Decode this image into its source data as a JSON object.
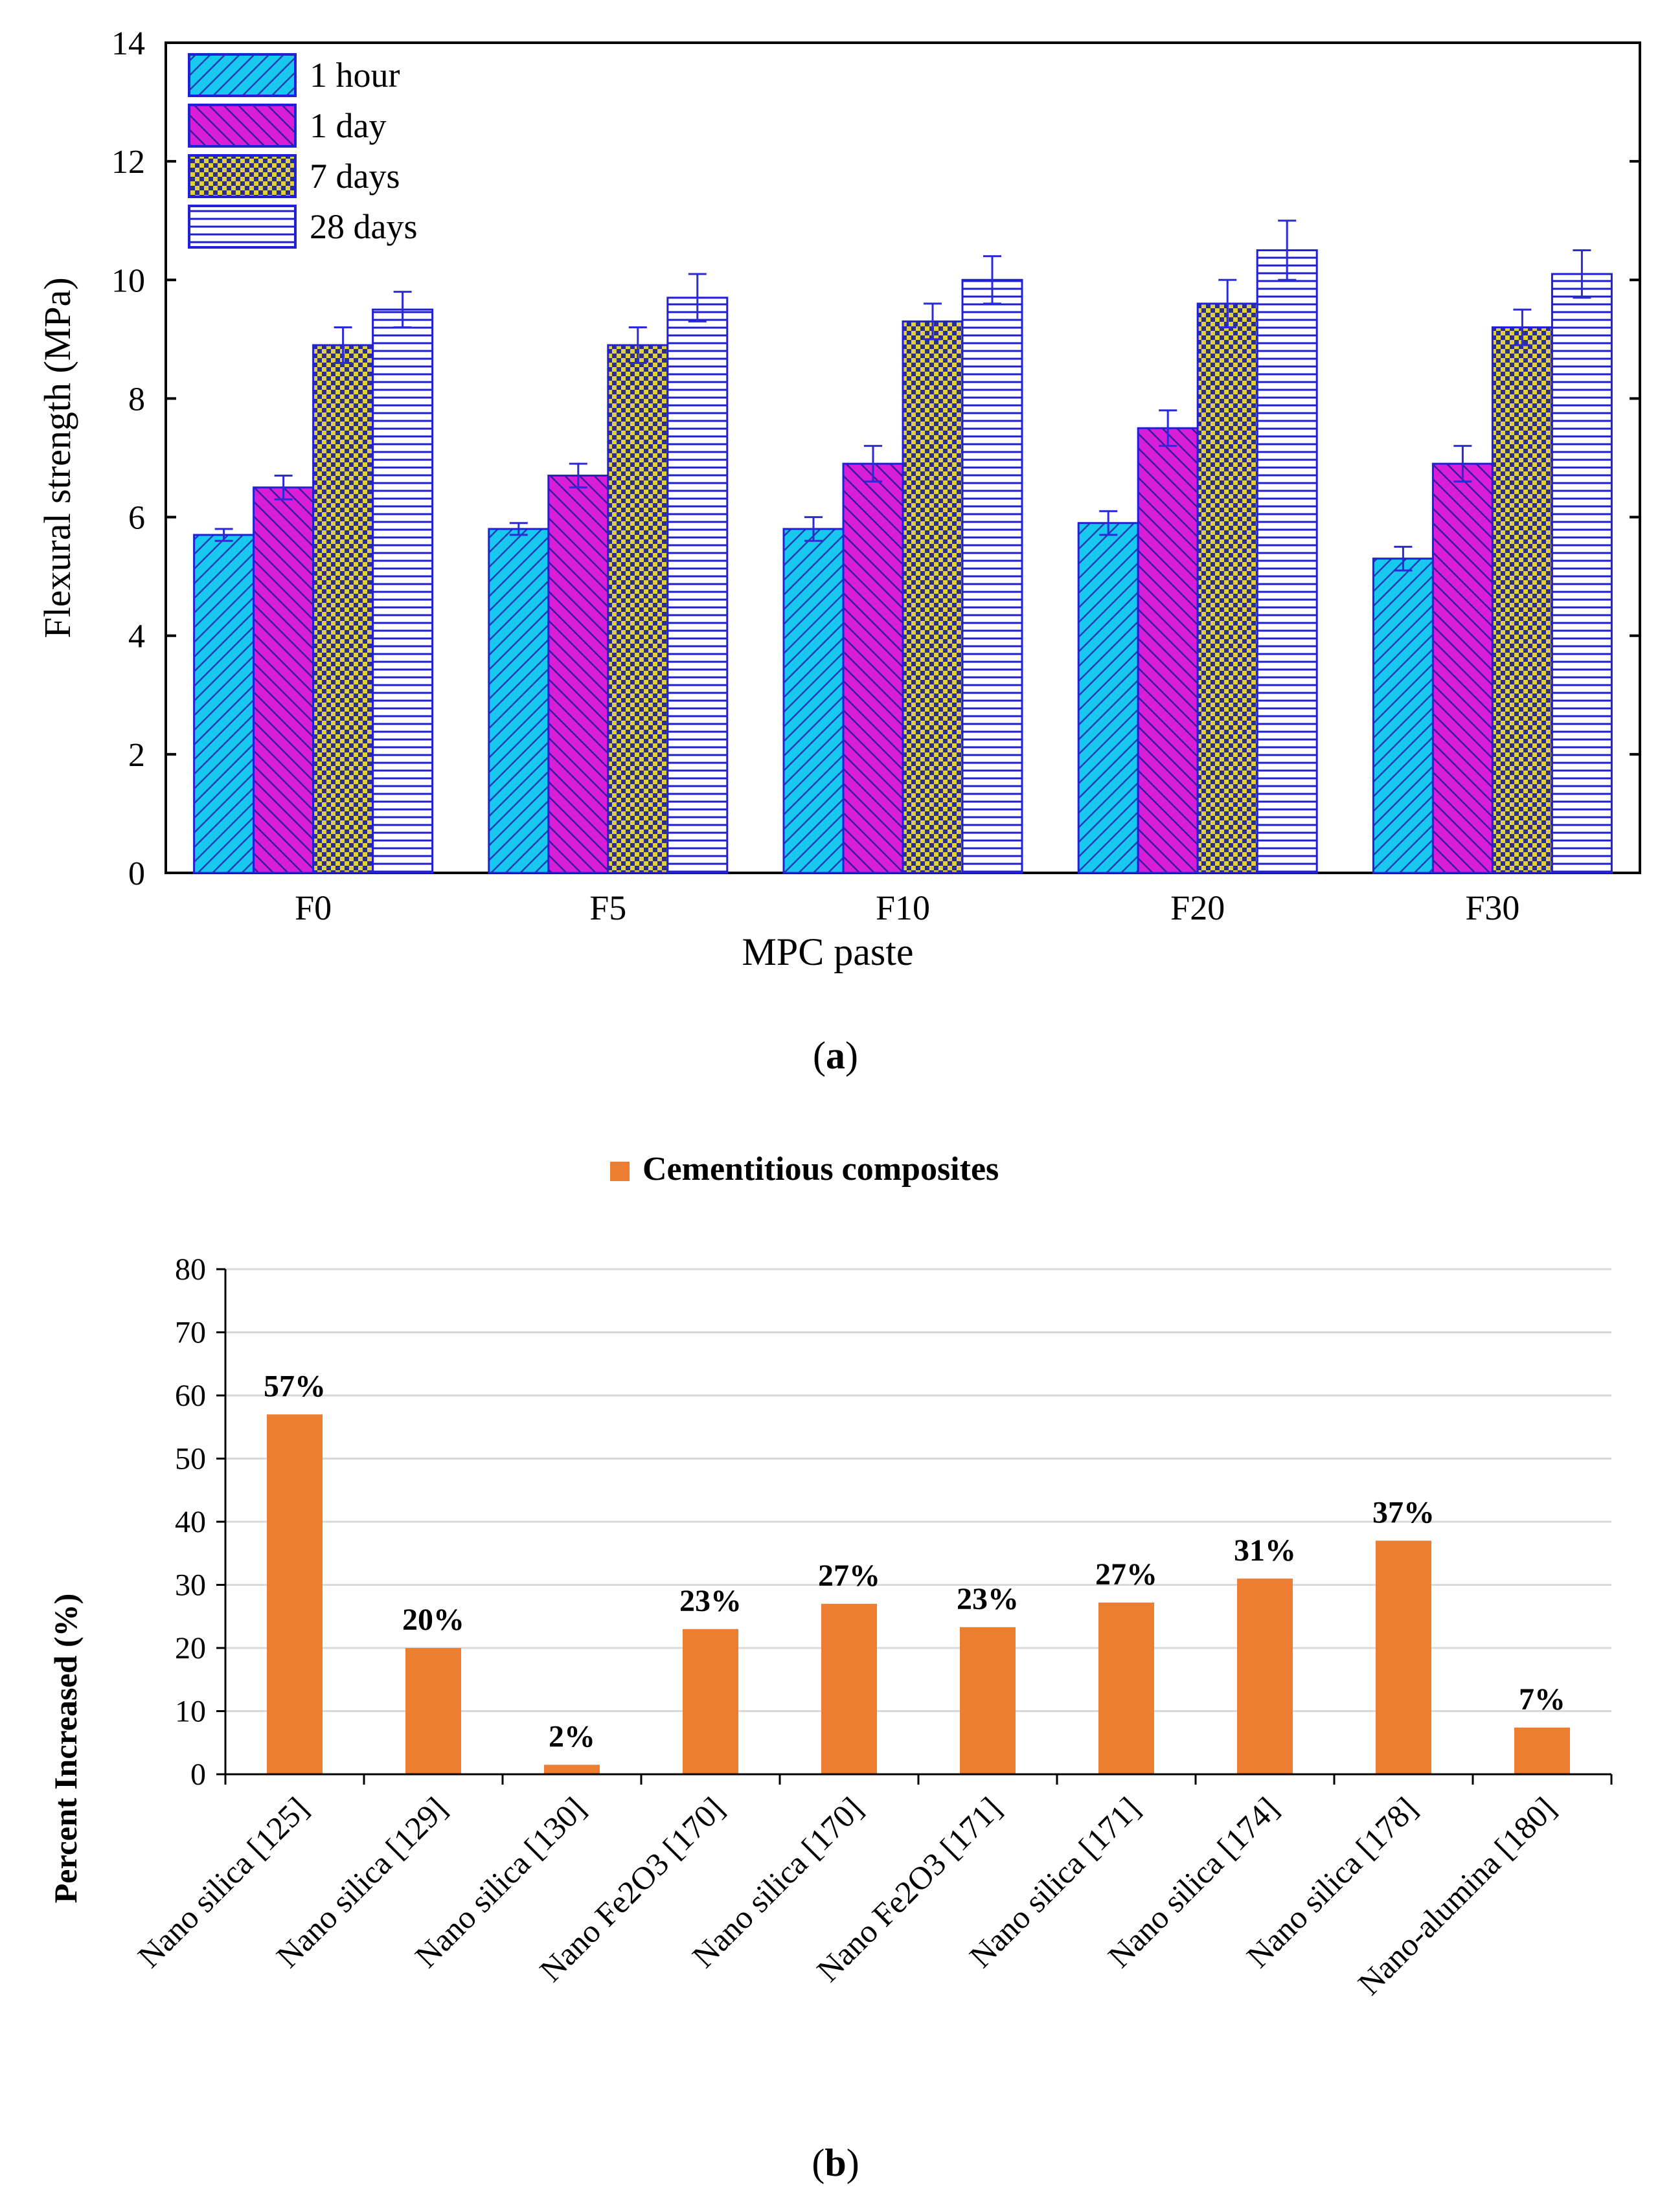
{
  "chart_data": [
    {
      "type": "bar",
      "panel_label": "a",
      "xlabel": "MPC paste",
      "ylabel": "Flexural strength (MPa)",
      "ylim": [
        0,
        14
      ],
      "yticks": [
        0,
        2,
        4,
        6,
        8,
        10,
        12,
        14
      ],
      "categories": [
        "F0",
        "F5",
        "F10",
        "F20",
        "F30"
      ],
      "legend_position": "top-left",
      "series": [
        {
          "name": "1 hour",
          "values": [
            5.7,
            5.8,
            5.8,
            5.9,
            5.3
          ],
          "errors": [
            0.1,
            0.1,
            0.2,
            0.2,
            0.2
          ],
          "color": "#19c8ef",
          "pattern": "diagonal"
        },
        {
          "name": "1 day",
          "values": [
            6.5,
            6.7,
            6.9,
            7.5,
            6.9
          ],
          "errors": [
            0.2,
            0.2,
            0.3,
            0.3,
            0.3
          ],
          "color": "#d81ed8",
          "pattern": "diagonal"
        },
        {
          "name": "7 days",
          "values": [
            8.9,
            8.9,
            9.3,
            9.6,
            9.2
          ],
          "errors": [
            0.3,
            0.3,
            0.3,
            0.4,
            0.3
          ],
          "color": "#c8b433",
          "pattern": "checker"
        },
        {
          "name": "28 days",
          "values": [
            9.5,
            9.7,
            10.0,
            10.5,
            10.1
          ],
          "errors": [
            0.3,
            0.4,
            0.4,
            0.5,
            0.4
          ],
          "color": "#ffffff",
          "pattern": "horizontal"
        }
      ]
    },
    {
      "type": "bar",
      "panel_label": "b",
      "title": "",
      "legend": [
        "Cementitious composites"
      ],
      "legend_position": "top-center",
      "xlabel": "",
      "ylabel": "Percent Increased (%)",
      "ylim": [
        0,
        80
      ],
      "yticks": [
        0,
        10,
        20,
        30,
        40,
        50,
        60,
        70,
        80
      ],
      "grid": true,
      "categories": [
        "Nano silica [125]",
        "Nano silica [129]",
        "Nano silica [130]",
        "Nano Fe2O3 [170]",
        "Nano silica [170]",
        "Nano Fe2O3 [171]",
        "Nano silica [171]",
        "Nano silica [174]",
        "Nano silica [178]",
        "Nano-alumina [180]"
      ],
      "values": [
        57,
        20,
        1.5,
        23,
        27,
        23.3,
        27.2,
        31,
        37,
        7.4
      ],
      "data_labels": [
        "57%",
        "20%",
        "2%",
        "23%",
        "27%",
        "23%",
        "27%",
        "31%",
        "37%",
        "7%"
      ],
      "bar_color": "#ed7d31"
    }
  ]
}
